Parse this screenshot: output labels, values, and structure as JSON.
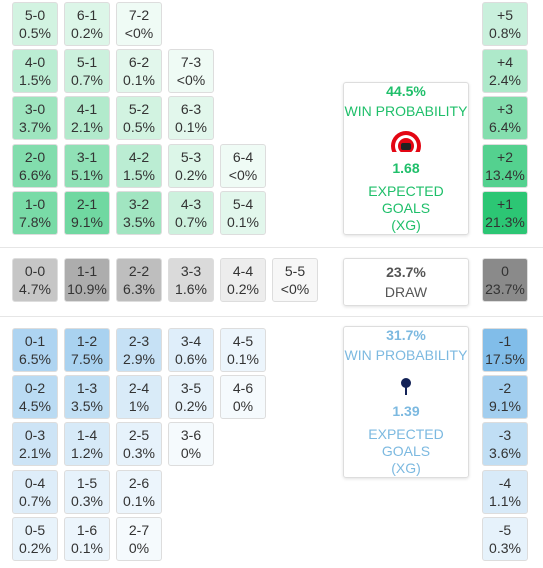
{
  "home": {
    "color": "#22c36e",
    "text_color": "#1fbf6a",
    "rows": [
      [
        {
          "score": "5-0",
          "prob": "0.5%"
        },
        {
          "score": "6-1",
          "prob": "0.2%"
        },
        {
          "score": "7-2",
          "prob": "<0%"
        }
      ],
      [
        {
          "score": "4-0",
          "prob": "1.5%"
        },
        {
          "score": "5-1",
          "prob": "0.7%"
        },
        {
          "score": "6-2",
          "prob": "0.1%"
        },
        {
          "score": "7-3",
          "prob": "<0%"
        }
      ],
      [
        {
          "score": "3-0",
          "prob": "3.7%"
        },
        {
          "score": "4-1",
          "prob": "2.1%"
        },
        {
          "score": "5-2",
          "prob": "0.5%"
        },
        {
          "score": "6-3",
          "prob": "0.1%"
        }
      ],
      [
        {
          "score": "2-0",
          "prob": "6.6%"
        },
        {
          "score": "3-1",
          "prob": "5.1%"
        },
        {
          "score": "4-2",
          "prob": "1.5%"
        },
        {
          "score": "5-3",
          "prob": "0.2%"
        },
        {
          "score": "6-4",
          "prob": "<0%"
        }
      ],
      [
        {
          "score": "1-0",
          "prob": "7.8%"
        },
        {
          "score": "2-1",
          "prob": "9.1%"
        },
        {
          "score": "3-2",
          "prob": "3.5%"
        },
        {
          "score": "4-3",
          "prob": "0.7%"
        },
        {
          "score": "5-4",
          "prob": "0.1%"
        }
      ]
    ],
    "margins": [
      {
        "score": "+5",
        "prob": "0.8%"
      },
      {
        "score": "+4",
        "prob": "2.4%"
      },
      {
        "score": "+3",
        "prob": "6.4%"
      },
      {
        "score": "+2",
        "prob": "13.4%"
      },
      {
        "score": "+1",
        "prob": "21.3%"
      }
    ],
    "summary": {
      "probability": "44.5%",
      "label": "WIN PROBABILITY",
      "xg": "1.68",
      "xg_label": [
        "EXPECTED GOALS",
        "(XG)"
      ]
    }
  },
  "draw": {
    "color": "#8a8a8a",
    "text_color": "#555555",
    "rows": [
      [
        {
          "score": "0-0",
          "prob": "4.7%"
        },
        {
          "score": "1-1",
          "prob": "10.9%"
        },
        {
          "score": "2-2",
          "prob": "6.3%"
        },
        {
          "score": "3-3",
          "prob": "1.6%"
        },
        {
          "score": "4-4",
          "prob": "0.2%"
        },
        {
          "score": "5-5",
          "prob": "<0%"
        }
      ]
    ],
    "margins": [
      {
        "score": "0",
        "prob": "23.7%"
      }
    ],
    "summary": {
      "probability": "23.7%",
      "label": "DRAW"
    }
  },
  "away": {
    "color": "#6fb3e6",
    "text_color": "#7cb9e0",
    "rows": [
      [
        {
          "score": "0-1",
          "prob": "6.5%"
        },
        {
          "score": "1-2",
          "prob": "7.5%"
        },
        {
          "score": "2-3",
          "prob": "2.9%"
        },
        {
          "score": "3-4",
          "prob": "0.6%"
        },
        {
          "score": "4-5",
          "prob": "0.1%"
        }
      ],
      [
        {
          "score": "0-2",
          "prob": "4.5%"
        },
        {
          "score": "1-3",
          "prob": "3.5%"
        },
        {
          "score": "2-4",
          "prob": "1%"
        },
        {
          "score": "3-5",
          "prob": "0.2%"
        },
        {
          "score": "4-6",
          "prob": "0%"
        }
      ],
      [
        {
          "score": "0-3",
          "prob": "2.1%"
        },
        {
          "score": "1-4",
          "prob": "1.2%"
        },
        {
          "score": "2-5",
          "prob": "0.3%"
        },
        {
          "score": "3-6",
          "prob": "0%"
        }
      ],
      [
        {
          "score": "0-4",
          "prob": "0.7%"
        },
        {
          "score": "1-5",
          "prob": "0.3%"
        },
        {
          "score": "2-6",
          "prob": "0.1%"
        }
      ],
      [
        {
          "score": "0-5",
          "prob": "0.2%"
        },
        {
          "score": "1-6",
          "prob": "0.1%"
        },
        {
          "score": "2-7",
          "prob": "0%"
        }
      ]
    ],
    "margins": [
      {
        "score": "-1",
        "prob": "17.5%"
      },
      {
        "score": "-2",
        "prob": "9.1%"
      },
      {
        "score": "-3",
        "prob": "3.6%"
      },
      {
        "score": "-4",
        "prob": "1.1%"
      },
      {
        "score": "-5",
        "prob": "0.3%"
      }
    ],
    "summary": {
      "probability": "31.7%",
      "label": "WIN PROBABILITY",
      "xg": "1.39",
      "xg_label": [
        "EXPECTED GOALS",
        "(XG)"
      ]
    }
  }
}
